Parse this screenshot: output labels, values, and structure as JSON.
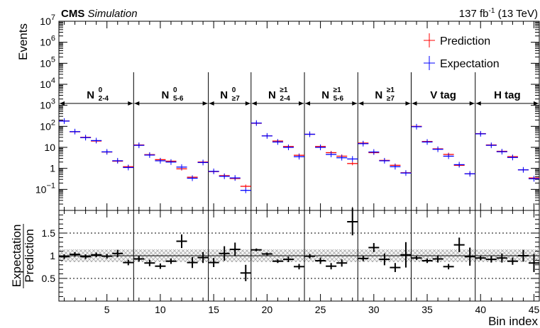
{
  "header": {
    "experiment": "CMS",
    "status": "Simulation",
    "lumi_value": "137 fb",
    "lumi_exp": "-1",
    "lumi_energy": " (13 TeV)"
  },
  "chart_data": {
    "type": "scatter",
    "xlabel": "Bin index",
    "ylabel_top": "Events",
    "ylabel_ratio_num": "Expectation",
    "ylabel_ratio_den": "Prediction",
    "log_y": true,
    "top_ylim": [
      0.01,
      10000000
    ],
    "ratio_ylim": [
      0,
      2
    ],
    "xlim": [
      0.5,
      45.5
    ],
    "x_ticks": [
      "5",
      "10",
      "15",
      "20",
      "25",
      "30",
      "35",
      "40",
      "45"
    ],
    "y_ticks_top": [
      {
        "base": "10",
        "exp": "−1"
      },
      {
        "base": "1",
        "exp": ""
      },
      {
        "base": "10",
        "exp": ""
      },
      {
        "base": "10",
        "exp": "2"
      },
      {
        "base": "10",
        "exp": "3"
      },
      {
        "base": "10",
        "exp": "4"
      },
      {
        "base": "10",
        "exp": "5"
      },
      {
        "base": "10",
        "exp": "6"
      },
      {
        "base": "10",
        "exp": "7"
      }
    ],
    "y_ticks_ratio": [
      "0.5",
      "1",
      "1.5"
    ],
    "legend": [
      {
        "name": "Prediction",
        "color": "#ff0000"
      },
      {
        "name": "Expectation",
        "color": "#0000ff"
      }
    ],
    "regions": [
      {
        "main": "N",
        "sup": "0",
        "sub": "2-4",
        "range": [
          0.5,
          7.5
        ]
      },
      {
        "main": "N",
        "sup": "0",
        "sub": "5-6",
        "range": [
          7.5,
          14.5
        ]
      },
      {
        "main": "N",
        "sup": "0",
        "sub": "≥7",
        "range": [
          14.5,
          18.5
        ]
      },
      {
        "main": "N",
        "sup": "≥1",
        "sub": "2-4",
        "range": [
          18.5,
          23.5
        ]
      },
      {
        "main": "N",
        "sup": "≥1",
        "sub": "5-6",
        "range": [
          23.5,
          28.5
        ]
      },
      {
        "main": "N",
        "sup": "≥1",
        "sub": "≥7",
        "range": [
          28.5,
          33.5
        ]
      },
      {
        "main": "V tag",
        "sup": "",
        "sub": "",
        "range": [
          33.5,
          39.5
        ]
      },
      {
        "main": "H tag",
        "sup": "",
        "sub": "",
        "range": [
          39.5,
          45.5
        ]
      }
    ],
    "prediction": [
      180,
      55,
      30,
      20,
      6,
      2.2,
      1.2,
      13,
      4.5,
      2.6,
      2.2,
      0.95,
      0.38,
      2.0,
      0.7,
      0.45,
      0.33,
      0.14,
      140,
      35,
      20,
      11,
      4.2,
      42,
      11,
      5.6,
      3.8,
      1.7,
      16,
      5.6,
      2.4,
      1.4,
      0.62,
      100,
      19,
      8.5,
      4.6,
      1.4,
      0.55,
      45,
      13,
      6.5,
      3.6,
      0.85,
      0.35
    ],
    "expectation": [
      178,
      56,
      29,
      21,
      6.1,
      2.3,
      1.1,
      12.5,
      4.3,
      2.3,
      2.0,
      1.15,
      0.34,
      1.9,
      0.72,
      0.42,
      0.35,
      0.09,
      143,
      35,
      18,
      10,
      3.6,
      42,
      10,
      4.6,
      3.2,
      2.8,
      15,
      6.0,
      2.3,
      1.2,
      0.6,
      96,
      18,
      8.1,
      3.8,
      1.5,
      0.55,
      44,
      12.5,
      6.2,
      3.3,
      0.85,
      0.32
    ],
    "ratio": {
      "values": [
        0.98,
        1.03,
        0.98,
        1.02,
        0.99,
        1.05,
        0.85,
        0.93,
        0.84,
        0.77,
        0.88,
        1.32,
        0.85,
        0.96,
        0.85,
        1.05,
        1.14,
        0.62,
        1.13,
        1.04,
        0.88,
        0.92,
        0.76,
        0.99,
        0.89,
        0.77,
        0.84,
        1.75,
        0.94,
        1.18,
        0.92,
        0.74,
        1.02,
        0.95,
        0.89,
        0.93,
        0.76,
        1.24,
        0.98,
        0.95,
        0.92,
        0.95,
        0.88,
        1.0,
        0.84
      ],
      "errors": [
        0.05,
        0.05,
        0.05,
        0.05,
        0.05,
        0.08,
        0.06,
        0.06,
        0.07,
        0.06,
        0.06,
        0.15,
        0.12,
        0.12,
        0.1,
        0.16,
        0.15,
        0.18,
        0.03,
        0.03,
        0.04,
        0.06,
        0.06,
        0.05,
        0.07,
        0.07,
        0.08,
        0.3,
        0.06,
        0.1,
        0.13,
        0.1,
        0.28,
        0.04,
        0.05,
        0.08,
        0.06,
        0.16,
        0.2,
        0.05,
        0.07,
        0.1,
        0.08,
        0.13,
        0.2
      ],
      "band": [
        0.86,
        1.14
      ]
    }
  }
}
